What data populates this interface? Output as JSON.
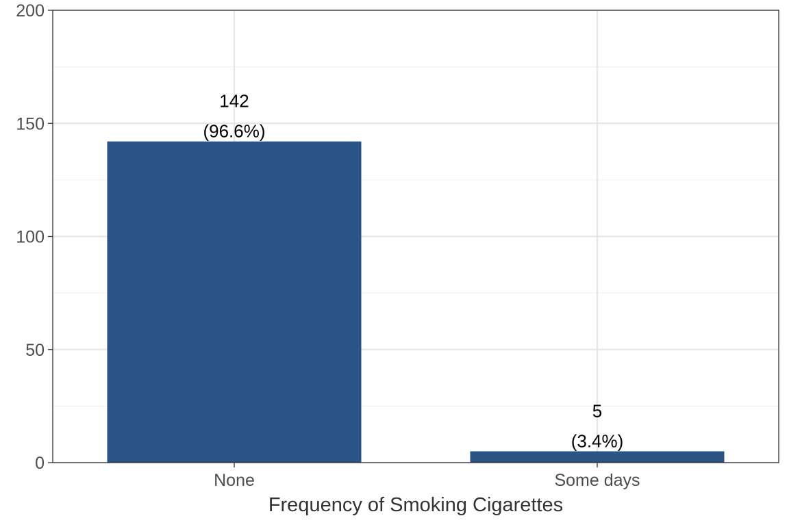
{
  "chart_data": {
    "type": "bar",
    "categories": [
      "None",
      "Some days"
    ],
    "values": [
      142,
      5
    ],
    "data_labels": [
      {
        "count": "142",
        "percent": "(96.6%)"
      },
      {
        "count": "5",
        "percent": "(3.4%)"
      }
    ],
    "title": "",
    "xlabel": "Frequency of Smoking Cigarettes",
    "ylabel": "",
    "ylim": [
      0,
      200
    ],
    "yticks": [
      0,
      50,
      100,
      150,
      200
    ],
    "ytick_labels": [
      "0",
      "50",
      "100",
      "150",
      "200"
    ],
    "grid": true,
    "legend": "none",
    "colors": {
      "bar": "#2A5386",
      "grid": "#E6E6E6",
      "border": "#333333",
      "tick_text": "#4D4D4D"
    }
  }
}
